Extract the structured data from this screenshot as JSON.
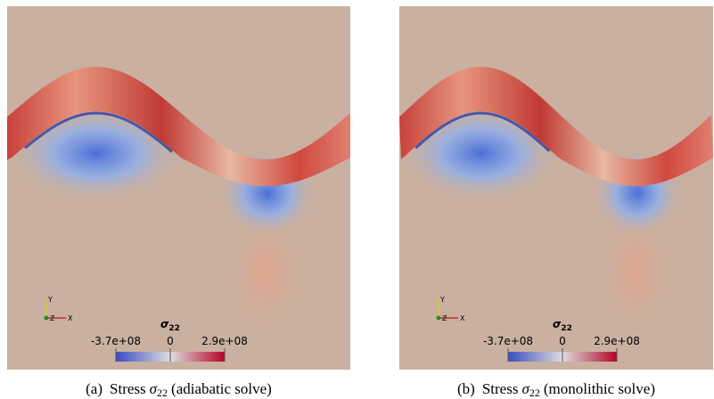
{
  "panels": [
    {
      "caption": {
        "label": "(a)",
        "text": "Stress",
        "symbol": "σ",
        "subscript": "22",
        "suffix": "(adiabatic solve)"
      },
      "colorbar": {
        "title": "σ",
        "title_subscript": "22",
        "min_label": "-3.7e+08",
        "mid_label": "0",
        "max_label": "2.9e+08"
      },
      "axes": {
        "y": "Y",
        "z": "Z",
        "x": "X"
      }
    },
    {
      "caption": {
        "label": "(b)",
        "text": "Stress",
        "symbol": "σ",
        "subscript": "22",
        "suffix": "(monolithic solve)"
      },
      "colorbar": {
        "title": "σ",
        "title_subscript": "22",
        "min_label": "-3.7e+08",
        "mid_label": "0",
        "max_label": "2.9e+08"
      },
      "axes": {
        "y": "Y",
        "z": "Z",
        "x": "X"
      }
    }
  ]
}
